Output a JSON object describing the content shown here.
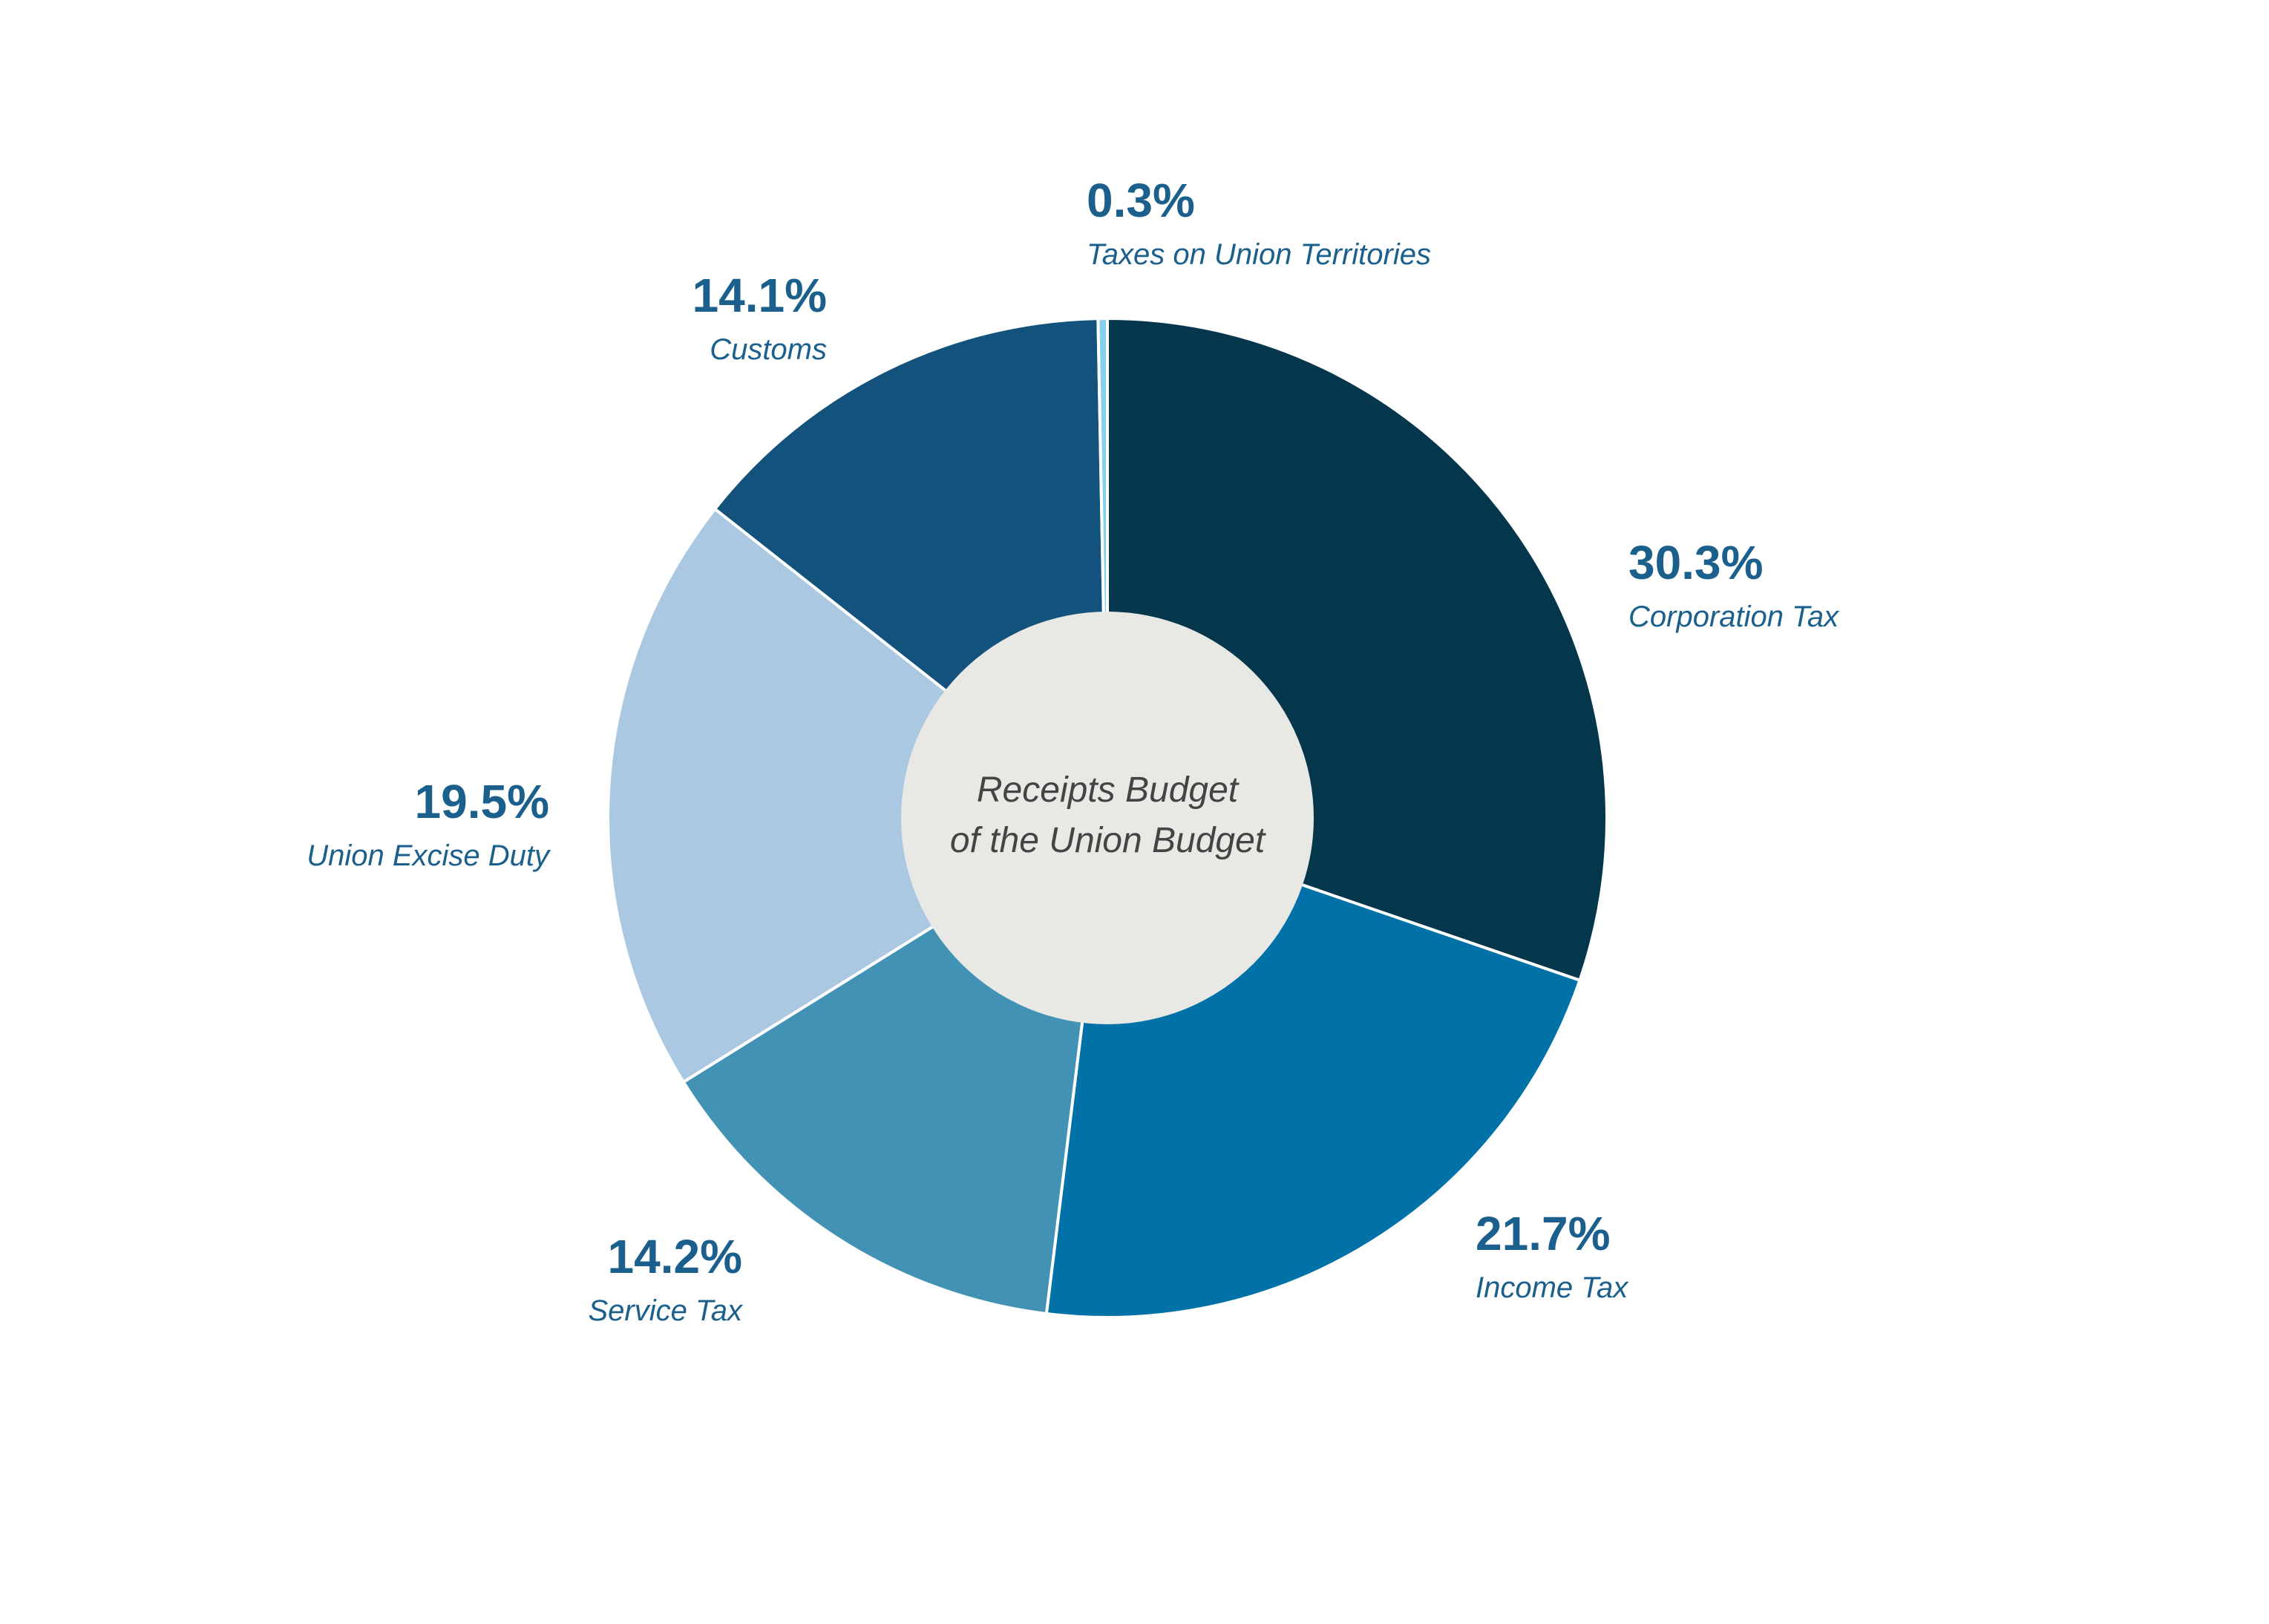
{
  "chart_data": {
    "type": "pie",
    "donut": true,
    "title": "",
    "center_label": [
      "Receipts Budget",
      "of the Union Budget"
    ],
    "slices": [
      {
        "label": "Corporation Tax",
        "value": 30.3,
        "value_label": "30.3%",
        "color": "#05374C"
      },
      {
        "label": "Income Tax",
        "value": 21.7,
        "value_label": "21.7%",
        "color": "#0072A8"
      },
      {
        "label": "Service Tax",
        "value": 14.2,
        "value_label": "14.2%",
        "color": "#4292B5"
      },
      {
        "label": "Union Excise Duty",
        "value": 19.5,
        "value_label": "19.5%",
        "color": "#ABC8E2"
      },
      {
        "label": "Customs",
        "value": 14.1,
        "value_label": "14.1%",
        "color": "#13527C"
      },
      {
        "label": "Taxes on Union Territories",
        "value": 0.3,
        "value_label": "0.3%",
        "color": "#87CFEF"
      }
    ],
    "label_color": "#1B5F8C",
    "center_fill": "#E8E8E5",
    "center_text_color": "#444444",
    "legend": "none"
  }
}
